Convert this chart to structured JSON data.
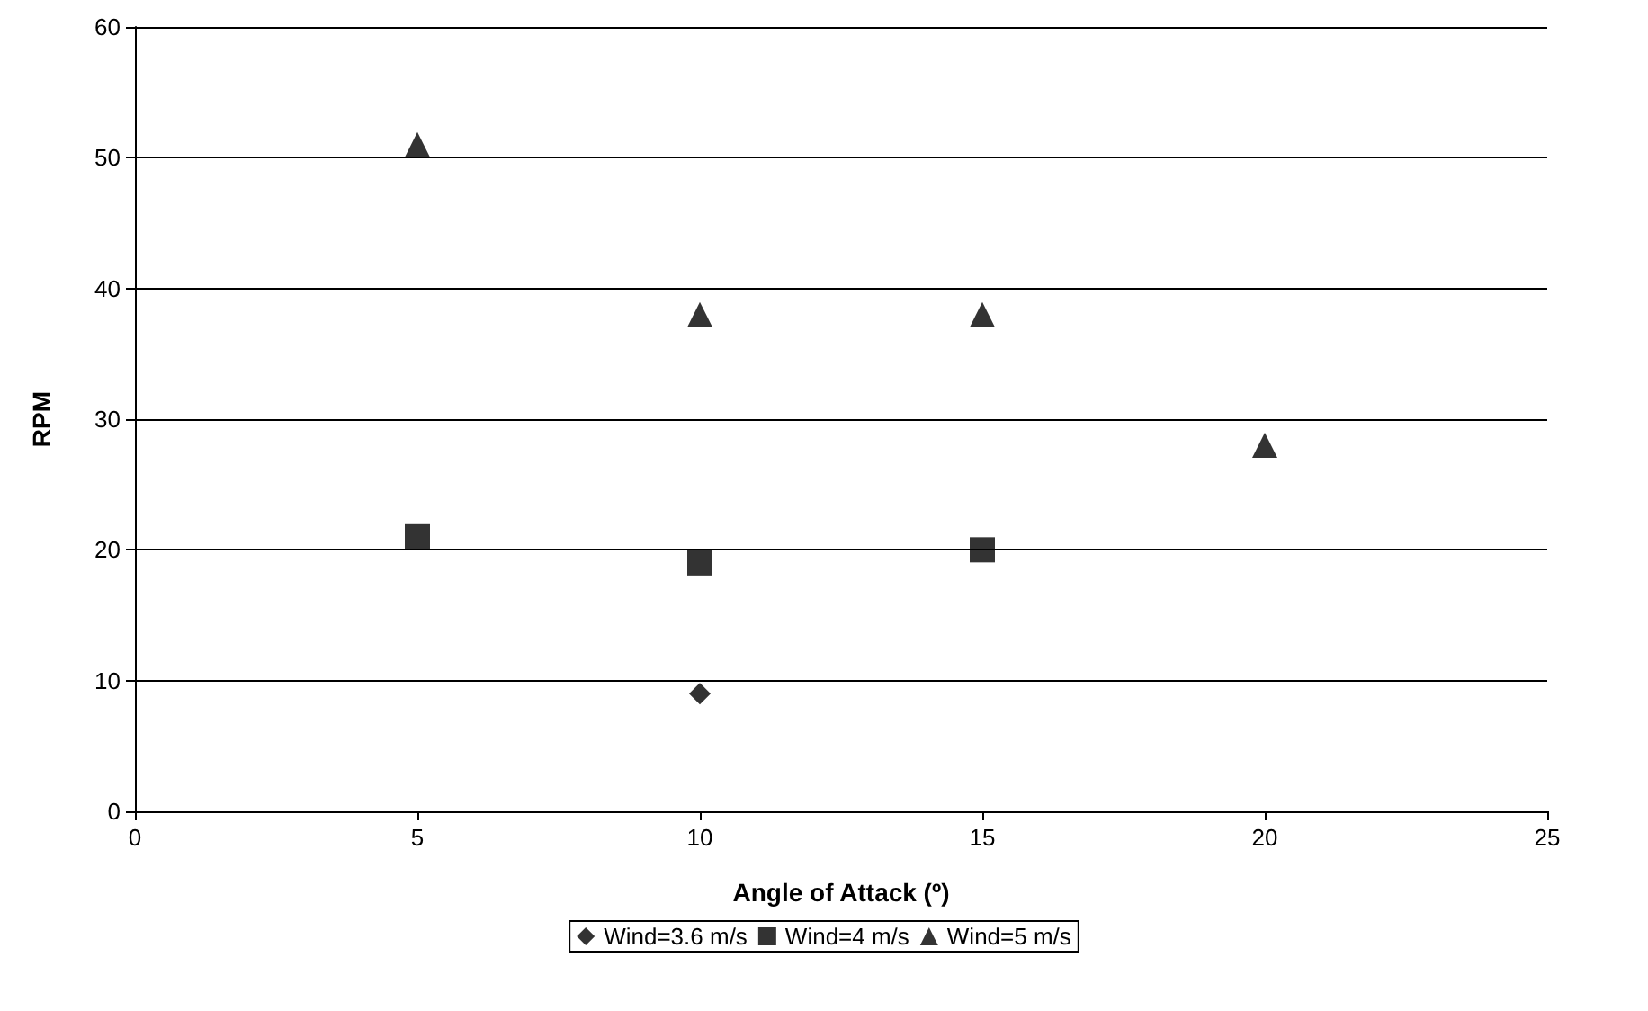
{
  "chart_data": {
    "type": "scatter",
    "xlabel": "Angle of Attack (º)",
    "ylabel": "RPM",
    "xlim": [
      0,
      25
    ],
    "xticks": [
      0,
      5,
      10,
      15,
      20,
      25
    ],
    "ylim": [
      0,
      60
    ],
    "yticks": [
      0,
      10,
      20,
      30,
      40,
      50,
      60
    ],
    "grid": "y",
    "legend": "bottom",
    "series": [
      {
        "name": "Wind=3.6 m/s",
        "color": "#000000",
        "marker": "diamond",
        "x": [
          10
        ],
        "values": [
          9
        ]
      },
      {
        "name": "Wind=4 m/s",
        "color": "#000000",
        "marker": "square",
        "x": [
          5,
          10,
          15
        ],
        "values": [
          21,
          19,
          20
        ]
      },
      {
        "name": "Wind=5 m/s",
        "color": "#000000",
        "marker": "triangle",
        "x": [
          5,
          10,
          15,
          20
        ],
        "values": [
          51,
          38,
          38,
          28
        ]
      }
    ]
  }
}
